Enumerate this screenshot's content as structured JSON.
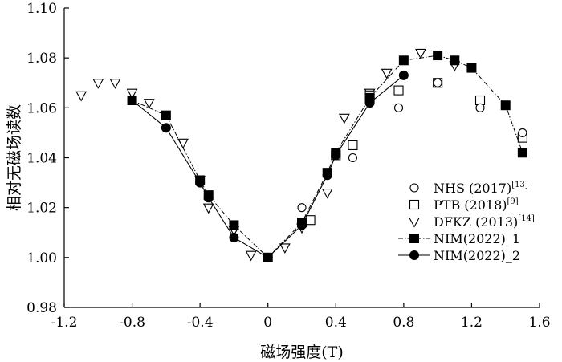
{
  "chart_data": {
    "type": "scatter",
    "xlabel": "磁场强度(T)",
    "ylabel": "相对无磁场读数",
    "xlim": [
      -1.2,
      1.6
    ],
    "ylim": [
      0.98,
      1.1
    ],
    "x_ticks": [
      "-1.2",
      "-0.8",
      "-0.4",
      "0",
      "0.4",
      "0.8",
      "1.2",
      "1.6"
    ],
    "y_ticks": [
      "0.98",
      "1.00",
      "1.02",
      "1.04",
      "1.06",
      "1.08",
      "1.10"
    ],
    "legend_position": "right",
    "series": [
      {
        "name": "NHS (2017)",
        "ref": "[13]",
        "marker": "circle-open",
        "line": false,
        "points": [
          [
            0.2,
            1.02
          ],
          [
            0.5,
            1.04
          ],
          [
            0.77,
            1.06
          ],
          [
            1.0,
            1.07
          ],
          [
            1.25,
            1.06
          ],
          [
            1.5,
            1.05
          ]
        ]
      },
      {
        "name": "PTB (2018)",
        "ref": "[9]",
        "marker": "square-open",
        "line": false,
        "points": [
          [
            0.25,
            1.015
          ],
          [
            0.4,
            1.041
          ],
          [
            0.5,
            1.045
          ],
          [
            0.6,
            1.065
          ],
          [
            0.77,
            1.067
          ],
          [
            1.0,
            1.07
          ],
          [
            1.25,
            1.063
          ],
          [
            1.5,
            1.048
          ]
        ]
      },
      {
        "name": "DFKZ (2013)",
        "ref": "[14]",
        "marker": "triangle-down-open",
        "line": false,
        "points": [
          [
            -1.1,
            1.065
          ],
          [
            -1.0,
            1.07
          ],
          [
            -0.9,
            1.07
          ],
          [
            -0.8,
            1.066
          ],
          [
            -0.7,
            1.062
          ],
          [
            -0.5,
            1.046
          ],
          [
            -0.4,
            1.031
          ],
          [
            -0.35,
            1.02
          ],
          [
            -0.2,
            1.011
          ],
          [
            -0.1,
            1.001
          ],
          [
            0.1,
            1.004
          ],
          [
            0.2,
            1.012
          ],
          [
            0.35,
            1.026
          ],
          [
            0.45,
            1.056
          ],
          [
            0.6,
            1.066
          ],
          [
            0.7,
            1.074
          ],
          [
            0.9,
            1.082
          ],
          [
            1.1,
            1.077
          ]
        ]
      },
      {
        "name": "NIM(2022)_1",
        "marker": "square-filled",
        "line": "dash-dot",
        "points": [
          [
            -0.8,
            1.063
          ],
          [
            -0.6,
            1.057
          ],
          [
            -0.4,
            1.031
          ],
          [
            -0.35,
            1.025
          ],
          [
            -0.2,
            1.013
          ],
          [
            0.0,
            1.0
          ],
          [
            0.2,
            1.014
          ],
          [
            0.35,
            1.034
          ],
          [
            0.4,
            1.042
          ],
          [
            0.6,
            1.064
          ],
          [
            0.8,
            1.079
          ],
          [
            1.0,
            1.081
          ],
          [
            1.1,
            1.079
          ],
          [
            1.2,
            1.076
          ],
          [
            1.4,
            1.061
          ],
          [
            1.5,
            1.042
          ]
        ]
      },
      {
        "name": "NIM(2022)_2",
        "marker": "circle-filled",
        "line": "solid",
        "points": [
          [
            -0.8,
            1.063
          ],
          [
            -0.6,
            1.052
          ],
          [
            -0.4,
            1.03
          ],
          [
            -0.35,
            1.024
          ],
          [
            -0.2,
            1.008
          ],
          [
            0.0,
            1.0
          ],
          [
            0.2,
            1.013
          ],
          [
            0.35,
            1.033
          ],
          [
            0.4,
            1.041
          ],
          [
            0.6,
            1.062
          ],
          [
            0.8,
            1.073
          ]
        ]
      }
    ]
  }
}
